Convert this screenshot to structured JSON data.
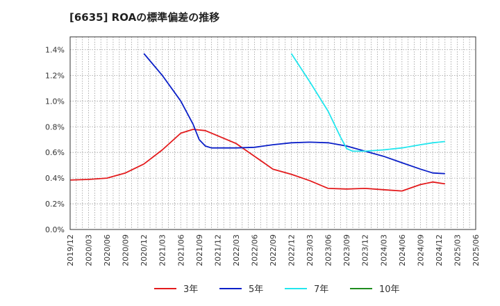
{
  "chart_data": {
    "type": "line",
    "title": "[6635]  ROAの標準偏差の推移",
    "xlabel": "",
    "ylabel": "",
    "ylim": [
      0,
      1.5
    ],
    "yticks": [
      {
        "value": 0.0,
        "label": "0.0%"
      },
      {
        "value": 0.2,
        "label": "0.2%"
      },
      {
        "value": 0.4,
        "label": "0.4%"
      },
      {
        "value": 0.6,
        "label": "0.6%"
      },
      {
        "value": 0.8,
        "label": "0.8%"
      },
      {
        "value": 1.0,
        "label": "1.0%"
      },
      {
        "value": 1.2,
        "label": "1.2%"
      },
      {
        "value": 1.4,
        "label": "1.4%"
      }
    ],
    "xlim": [
      0,
      66
    ],
    "xticks": [
      {
        "value": 0,
        "label": "2019/12"
      },
      {
        "value": 3,
        "label": "2020/03"
      },
      {
        "value": 6,
        "label": "2020/06"
      },
      {
        "value": 9,
        "label": "2020/09"
      },
      {
        "value": 12,
        "label": "2020/12"
      },
      {
        "value": 15,
        "label": "2021/03"
      },
      {
        "value": 18,
        "label": "2021/06"
      },
      {
        "value": 21,
        "label": "2021/09"
      },
      {
        "value": 24,
        "label": "2021/12"
      },
      {
        "value": 27,
        "label": "2022/03"
      },
      {
        "value": 30,
        "label": "2022/06"
      },
      {
        "value": 33,
        "label": "2022/09"
      },
      {
        "value": 36,
        "label": "2022/12"
      },
      {
        "value": 39,
        "label": "2023/03"
      },
      {
        "value": 42,
        "label": "2023/06"
      },
      {
        "value": 45,
        "label": "2023/09"
      },
      {
        "value": 48,
        "label": "2023/12"
      },
      {
        "value": 51,
        "label": "2024/03"
      },
      {
        "value": 54,
        "label": "2024/06"
      },
      {
        "value": 57,
        "label": "2024/09"
      },
      {
        "value": 60,
        "label": "2024/12"
      },
      {
        "value": 63,
        "label": "2025/03"
      },
      {
        "value": 66,
        "label": "2025/06"
      }
    ],
    "grid": true,
    "series": [
      {
        "name": "3年",
        "color": "#e31a1c",
        "points": [
          [
            0,
            0.385
          ],
          [
            3,
            0.39
          ],
          [
            6,
            0.4
          ],
          [
            9,
            0.44
          ],
          [
            12,
            0.51
          ],
          [
            15,
            0.62
          ],
          [
            18,
            0.75
          ],
          [
            20,
            0.78
          ],
          [
            22,
            0.77
          ],
          [
            24,
            0.73
          ],
          [
            27,
            0.67
          ],
          [
            30,
            0.57
          ],
          [
            33,
            0.47
          ],
          [
            36,
            0.43
          ],
          [
            39,
            0.38
          ],
          [
            42,
            0.32
          ],
          [
            45,
            0.315
          ],
          [
            48,
            0.32
          ],
          [
            51,
            0.31
          ],
          [
            54,
            0.3
          ],
          [
            57,
            0.35
          ],
          [
            59,
            0.37
          ],
          [
            61,
            0.355
          ]
        ]
      },
      {
        "name": "5年",
        "color": "#0a1fc8",
        "points": [
          [
            12,
            1.37
          ],
          [
            15,
            1.2
          ],
          [
            18,
            1.0
          ],
          [
            20,
            0.82
          ],
          [
            21,
            0.7
          ],
          [
            22,
            0.65
          ],
          [
            23,
            0.635
          ],
          [
            27,
            0.635
          ],
          [
            30,
            0.64
          ],
          [
            33,
            0.66
          ],
          [
            36,
            0.675
          ],
          [
            39,
            0.68
          ],
          [
            42,
            0.675
          ],
          [
            45,
            0.65
          ],
          [
            48,
            0.61
          ],
          [
            51,
            0.57
          ],
          [
            54,
            0.52
          ],
          [
            57,
            0.47
          ],
          [
            59,
            0.44
          ],
          [
            61,
            0.435
          ]
        ]
      },
      {
        "name": "7年",
        "color": "#22e6ee",
        "points": [
          [
            36,
            1.37
          ],
          [
            39,
            1.15
          ],
          [
            42,
            0.92
          ],
          [
            44,
            0.72
          ],
          [
            45,
            0.63
          ],
          [
            46,
            0.61
          ],
          [
            48,
            0.61
          ],
          [
            51,
            0.62
          ],
          [
            54,
            0.635
          ],
          [
            57,
            0.66
          ],
          [
            59,
            0.675
          ],
          [
            61,
            0.685
          ]
        ]
      },
      {
        "name": "10年",
        "color": "#1e8c1e",
        "points": []
      }
    ]
  }
}
